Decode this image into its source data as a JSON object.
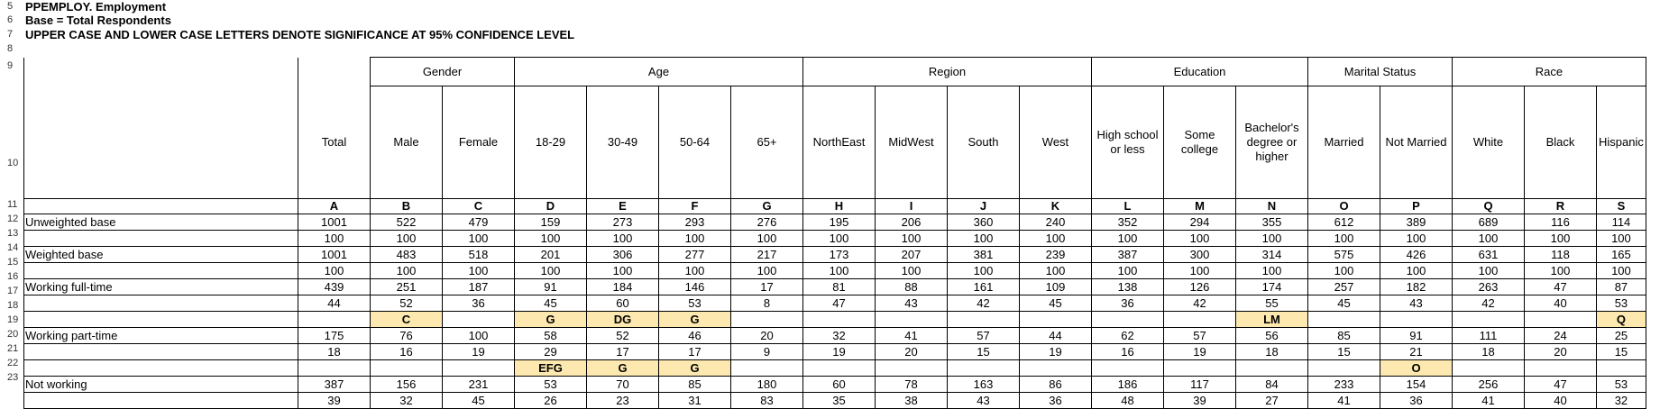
{
  "title_lines": {
    "title": "PPEMPLOY. Employment",
    "base": "Base = Total Respondents",
    "note": "UPPER CASE AND LOWER CASE LETTERS DENOTE SIGNIFICANCE AT 95% CONFIDENCE LEVEL"
  },
  "row_numbers": [
    "5",
    "6",
    "7",
    "8",
    "9",
    "10",
    "11",
    "12",
    "13",
    "14",
    "15",
    "16",
    "17",
    "18",
    "19",
    "20",
    "21",
    "22",
    "23"
  ],
  "groups": [
    {
      "label": "",
      "span": 1
    },
    {
      "label": "Gender",
      "span": 2
    },
    {
      "label": "Age",
      "span": 4
    },
    {
      "label": "Region",
      "span": 4
    },
    {
      "label": "Education",
      "span": 3
    },
    {
      "label": "Marital Status",
      "span": 2
    },
    {
      "label": "Race",
      "span": 3
    }
  ],
  "columns": [
    "Total",
    "Male",
    "Female",
    "18-29",
    "30-49",
    "50-64",
    "65+",
    "NorthEast",
    "MidWest",
    "South",
    "West",
    "High school or less",
    "Some college",
    "Bachelor's degree or higher",
    "Married",
    "Not Married",
    "White",
    "Black",
    "Hispanic"
  ],
  "letters": [
    "A",
    "B",
    "C",
    "D",
    "E",
    "F",
    "G",
    "H",
    "I",
    "J",
    "K",
    "L",
    "M",
    "N",
    "O",
    "P",
    "Q",
    "R",
    "S"
  ],
  "rows": [
    {
      "label": "Unweighted base",
      "values": [
        "1001",
        "522",
        "479",
        "159",
        "273",
        "293",
        "276",
        "195",
        "206",
        "360",
        "240",
        "352",
        "294",
        "355",
        "612",
        "389",
        "689",
        "116",
        "114"
      ]
    },
    {
      "label": "",
      "values": [
        "100",
        "100",
        "100",
        "100",
        "100",
        "100",
        "100",
        "100",
        "100",
        "100",
        "100",
        "100",
        "100",
        "100",
        "100",
        "100",
        "100",
        "100",
        "100"
      ]
    },
    {
      "label": "Weighted base",
      "values": [
        "1001",
        "483",
        "518",
        "201",
        "306",
        "277",
        "217",
        "173",
        "207",
        "381",
        "239",
        "387",
        "300",
        "314",
        "575",
        "426",
        "631",
        "118",
        "165"
      ]
    },
    {
      "label": "",
      "values": [
        "100",
        "100",
        "100",
        "100",
        "100",
        "100",
        "100",
        "100",
        "100",
        "100",
        "100",
        "100",
        "100",
        "100",
        "100",
        "100",
        "100",
        "100",
        "100"
      ]
    },
    {
      "label": "Working full-time",
      "values": [
        "439",
        "251",
        "187",
        "91",
        "184",
        "146",
        "17",
        "81",
        "88",
        "161",
        "109",
        "138",
        "126",
        "174",
        "257",
        "182",
        "263",
        "47",
        "87"
      ]
    },
    {
      "label": "",
      "values": [
        "44",
        "52",
        "36",
        "45",
        "60",
        "53",
        "8",
        "47",
        "43",
        "42",
        "45",
        "36",
        "42",
        "55",
        "45",
        "43",
        "42",
        "40",
        "53"
      ]
    },
    {
      "label": "",
      "values": [
        "",
        "C",
        "",
        "G",
        "DG",
        "G",
        "",
        "",
        "",
        "",
        "",
        "",
        "",
        "LM",
        "",
        "",
        "",
        "",
        "Q"
      ],
      "sig": true
    },
    {
      "label": "Working part-time",
      "values": [
        "175",
        "76",
        "100",
        "58",
        "52",
        "46",
        "20",
        "32",
        "41",
        "57",
        "44",
        "62",
        "57",
        "56",
        "85",
        "91",
        "111",
        "24",
        "25"
      ]
    },
    {
      "label": "",
      "values": [
        "18",
        "16",
        "19",
        "29",
        "17",
        "17",
        "9",
        "19",
        "20",
        "15",
        "19",
        "16",
        "19",
        "18",
        "15",
        "21",
        "18",
        "20",
        "15"
      ]
    },
    {
      "label": "",
      "values": [
        "",
        "",
        "",
        "EFG",
        "G",
        "G",
        "",
        "",
        "",
        "",
        "",
        "",
        "",
        "",
        "",
        "O",
        "",
        "",
        ""
      ],
      "sig": true
    },
    {
      "label": "Not working",
      "values": [
        "387",
        "156",
        "231",
        "53",
        "70",
        "85",
        "180",
        "60",
        "78",
        "163",
        "86",
        "186",
        "117",
        "84",
        "233",
        "154",
        "256",
        "47",
        "53"
      ]
    },
    {
      "label": "",
      "values": [
        "39",
        "32",
        "45",
        "26",
        "23",
        "31",
        "83",
        "35",
        "38",
        "43",
        "36",
        "48",
        "39",
        "27",
        "41",
        "36",
        "41",
        "40",
        "32"
      ]
    }
  ],
  "colors": {
    "significance_fill": "#fde9b0"
  }
}
